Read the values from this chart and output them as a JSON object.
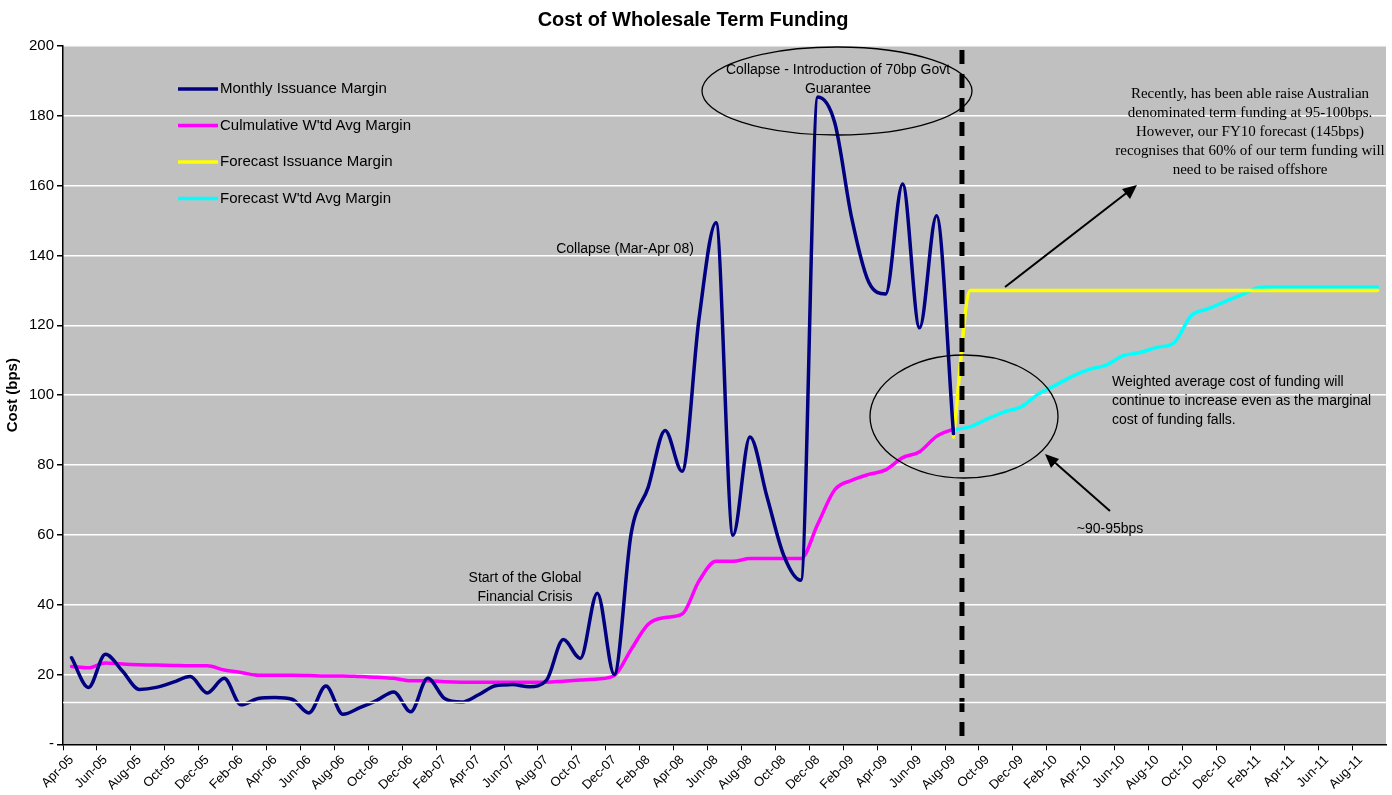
{
  "chart_data": {
    "type": "line",
    "title": "Cost of Wholesale Term Funding",
    "ylabel": "Cost (bps)",
    "categories": [
      "Apr-05",
      null,
      "Jun-05",
      null,
      "Aug-05",
      null,
      "Oct-05",
      null,
      "Dec-05",
      null,
      "Feb-06",
      null,
      "Apr-06",
      null,
      "Jun-06",
      null,
      "Aug-06",
      null,
      "Oct-06",
      null,
      "Dec-06",
      null,
      "Feb-07",
      null,
      "Apr-07",
      null,
      "Jun-07",
      null,
      "Aug-07",
      null,
      "Oct-07",
      null,
      "Dec-07",
      null,
      "Feb-08",
      null,
      "Apr-08",
      null,
      "Jun-08",
      null,
      "Aug-08",
      null,
      "Oct-08",
      null,
      "Dec-08",
      null,
      "Feb-09",
      null,
      "Apr-09",
      null,
      "Jun-09",
      null,
      "Aug-09",
      null,
      "Oct-09",
      null,
      "Dec-09",
      null,
      "Feb-10",
      null,
      "Apr-10",
      null,
      "Jun-10",
      null,
      "Aug-10",
      null,
      "Oct-10",
      null,
      "Dec-10",
      null,
      "Feb-11",
      null,
      "Apr-11",
      null,
      "Jun-11",
      null,
      "Aug-11",
      null
    ],
    "series": [
      {
        "name": "Monthly Issuance Margin",
        "color": "#000080",
        "values": [
          24.8,
          16.3,
          25.8,
          21,
          15.7,
          16.3,
          17.8,
          19.4,
          14.7,
          18.9,
          11.3,
          13.1,
          13.4,
          12.9,
          9,
          16.7,
          8.6,
          10.5,
          12.6,
          15,
          9.3,
          18.9,
          13.1,
          12.1,
          14.2,
          16.8,
          17.1,
          16.5,
          18.3,
          30,
          24.6,
          43.3,
          20,
          60.5,
          73.6,
          89.9,
          78.2,
          122,
          149.4,
          59.9,
          88,
          71,
          54,
          47,
          185.4,
          178,
          150.7,
          132.4,
          129,
          160.5,
          119.3,
          151.4,
          89,
          null,
          null,
          null,
          null,
          null,
          null,
          null,
          null,
          null,
          null,
          null,
          null,
          null,
          null,
          null,
          null,
          null,
          null,
          null,
          null,
          null,
          null,
          null,
          null,
          null
        ]
      },
      {
        "name": "Culmulative W'td Avg Margin",
        "color": "#ff00ff",
        "values": [
          22.3,
          21.9,
          23.3,
          23,
          22.8,
          22.7,
          22.6,
          22.5,
          22.5,
          21.3,
          20.6,
          19.8,
          19.8,
          19.8,
          19.7,
          19.6,
          19.6,
          19.4,
          19.2,
          18.9,
          18.2,
          18.2,
          17.9,
          17.8,
          17.8,
          17.8,
          17.8,
          17.8,
          17.8,
          18.1,
          18.4,
          18.7,
          19.7,
          27.2,
          34.4,
          36.3,
          37.3,
          46.8,
          52.4,
          52.4,
          53.2,
          53.2,
          53.2,
          53.2,
          63.1,
          72.9,
          75.6,
          77.3,
          78.6,
          82.1,
          83.8,
          88.2,
          90.3,
          null,
          null,
          null,
          null,
          null,
          null,
          null,
          null,
          null,
          null,
          null,
          null,
          null,
          null,
          null,
          null,
          null,
          null,
          null,
          null,
          null,
          null,
          null,
          null,
          null
        ]
      },
      {
        "name": "Forecast Issuance Margin",
        "color": "#ffff00",
        "values": [
          null,
          null,
          null,
          null,
          null,
          null,
          null,
          null,
          null,
          null,
          null,
          null,
          null,
          null,
          null,
          null,
          null,
          null,
          null,
          null,
          null,
          null,
          null,
          null,
          null,
          null,
          null,
          null,
          null,
          null,
          null,
          null,
          null,
          null,
          null,
          null,
          null,
          null,
          null,
          null,
          null,
          null,
          null,
          null,
          null,
          null,
          null,
          null,
          null,
          null,
          null,
          null,
          88,
          130,
          130,
          130,
          130,
          130,
          130,
          130,
          130,
          130,
          130,
          130,
          130,
          130,
          130,
          130,
          130,
          130,
          130,
          130,
          130,
          130,
          130,
          130,
          130,
          130
        ]
      },
      {
        "name": "Forecast W'td Avg Margin",
        "color": "#00ffff",
        "values": [
          null,
          null,
          null,
          null,
          null,
          null,
          null,
          null,
          null,
          null,
          null,
          null,
          null,
          null,
          null,
          null,
          null,
          null,
          null,
          null,
          null,
          null,
          null,
          null,
          null,
          null,
          null,
          null,
          null,
          null,
          null,
          null,
          null,
          null,
          null,
          null,
          null,
          null,
          null,
          null,
          null,
          null,
          null,
          null,
          null,
          null,
          null,
          null,
          null,
          null,
          null,
          null,
          90.1,
          91,
          93.2,
          95.2,
          96.7,
          100.3,
          102.8,
          105.4,
          107.4,
          108.6,
          111.3,
          112.2,
          113.7,
          115,
          122.7,
          124.7,
          126.8,
          128.8,
          130.8,
          131,
          131,
          131,
          131,
          131,
          131,
          131
        ]
      }
    ],
    "ylim": [
      0,
      200
    ],
    "yticks": [
      {
        "value": 0,
        "label": "-"
      },
      20,
      40,
      60,
      80,
      100,
      120,
      140,
      160,
      180,
      200
    ],
    "grid": "y",
    "legend": "top left",
    "marker": "none",
    "line_style": "solid",
    "ref_lines": [
      {
        "axis": "y",
        "value": 12,
        "color": "#ffffff",
        "line_style": "solid"
      }
    ],
    "annotations": [
      "Start of the Global Financial Crisis",
      "Collapse (Mar-Apr 08)",
      "Collapse - Introduction of 70bp Govt Guarantee",
      "Recently, has been able raise Australian denominated term funding at 95-100bps. However, our FY10 forecast (145bps) recognises that 60% of our term funding will need to be raised offshore",
      "Weighted average cost of funding will continue to increase even as the marginal cost of funding falls.",
      "~90-95bps"
    ]
  }
}
